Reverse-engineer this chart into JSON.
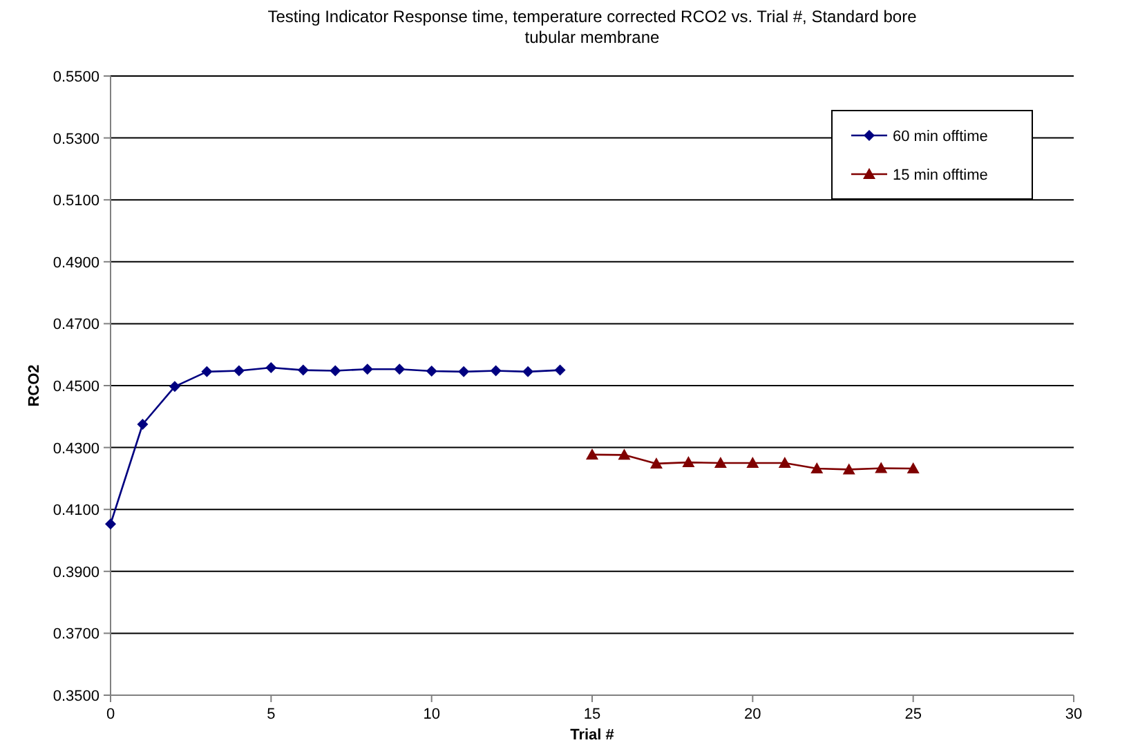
{
  "chart_data": {
    "type": "line",
    "title": "Testing Indicator Response time, temperature corrected RCO2 vs. Trial #, Standard bore tubular membrane",
    "xlabel": "Trial #",
    "ylabel": "RCO2",
    "xlim": [
      0,
      30
    ],
    "xticks": [
      0,
      5,
      10,
      15,
      20,
      25,
      30
    ],
    "ylim": [
      0.35,
      0.55
    ],
    "yticks": [
      {
        "value": 0.35,
        "label": "0.3500"
      },
      {
        "value": 0.37,
        "label": "0.3700"
      },
      {
        "value": 0.39,
        "label": "0.3900"
      },
      {
        "value": 0.41,
        "label": "0.4100"
      },
      {
        "value": 0.43,
        "label": "0.4300"
      },
      {
        "value": 0.45,
        "label": "0.4500"
      },
      {
        "value": 0.47,
        "label": "0.4700"
      },
      {
        "value": 0.49,
        "label": "0.4900"
      },
      {
        "value": 0.51,
        "label": "0.5100"
      },
      {
        "value": 0.53,
        "label": "0.5300"
      },
      {
        "value": 0.55,
        "label": "0.5500"
      }
    ],
    "grid": "y",
    "legend": "top right",
    "series": [
      {
        "name": "60 min offtime",
        "color": "#000080",
        "marker": "diamond",
        "x": [
          0,
          1,
          2,
          3,
          4,
          5,
          6,
          7,
          8,
          9,
          10,
          11,
          12,
          13,
          14
        ],
        "values": [
          0.4053,
          0.4375,
          0.4497,
          0.4545,
          0.4548,
          0.4558,
          0.455,
          0.4548,
          0.4553,
          0.4553,
          0.4547,
          0.4545,
          0.4548,
          0.4545,
          0.455
        ]
      },
      {
        "name": "15 min offtime",
        "color": "#800000",
        "marker": "triangle",
        "x": [
          15,
          16,
          17,
          18,
          19,
          20,
          21,
          22,
          23,
          24,
          25
        ],
        "values": [
          0.4277,
          0.4276,
          0.4248,
          0.4252,
          0.425,
          0.425,
          0.425,
          0.4232,
          0.4229,
          0.4233,
          0.4232
        ]
      }
    ]
  }
}
